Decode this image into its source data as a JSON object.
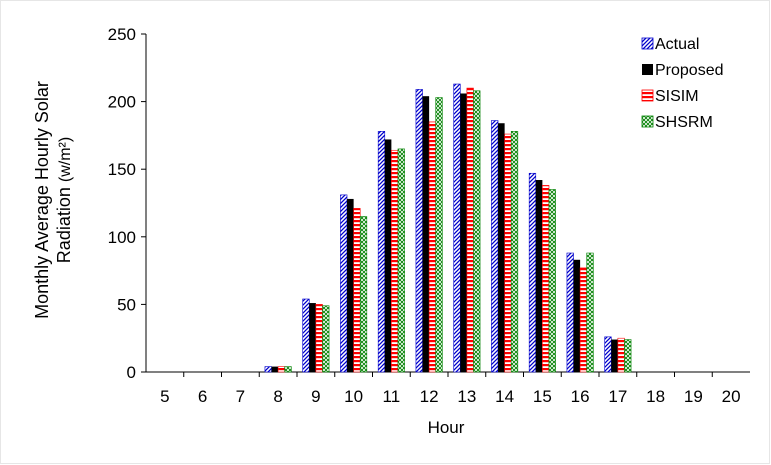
{
  "chart_data": {
    "type": "bar",
    "title": "",
    "xlabel": "Hour",
    "ylabel_line1": "Monthly Average Hourly Solar",
    "ylabel_line2": "Radiation",
    "ylabel_unit": "(w/m²)",
    "categories": [
      "5",
      "6",
      "7",
      "8",
      "9",
      "10",
      "11",
      "12",
      "13",
      "14",
      "15",
      "16",
      "17",
      "18",
      "19",
      "20"
    ],
    "ylim": [
      0,
      250
    ],
    "yticks": [
      "0",
      "50",
      "100",
      "150",
      "200",
      "250"
    ],
    "grid": false,
    "legend_position": "top-right",
    "series": [
      {
        "name": "Actual",
        "pattern": "diag",
        "color": "#0000cc",
        "values": [
          0,
          0,
          0,
          4,
          54,
          131,
          178,
          209,
          213,
          186,
          147,
          88,
          26,
          0,
          0,
          0
        ]
      },
      {
        "name": "Proposed",
        "pattern": "solid",
        "color": "#000000",
        "values": [
          0,
          0,
          0,
          4,
          51,
          128,
          172,
          204,
          206,
          184,
          142,
          83,
          24,
          0,
          0,
          0
        ]
      },
      {
        "name": "SISIM",
        "pattern": "horiz",
        "color": "#ff0000",
        "values": [
          0,
          0,
          0,
          4,
          50,
          121,
          164,
          185,
          210,
          176,
          138,
          77,
          25,
          0,
          0,
          0
        ]
      },
      {
        "name": "SHSRM",
        "pattern": "check",
        "color": "#008000",
        "values": [
          0,
          0,
          0,
          4,
          49,
          115,
          165,
          203,
          208,
          178,
          135,
          88,
          24,
          0,
          0,
          0
        ]
      }
    ]
  }
}
